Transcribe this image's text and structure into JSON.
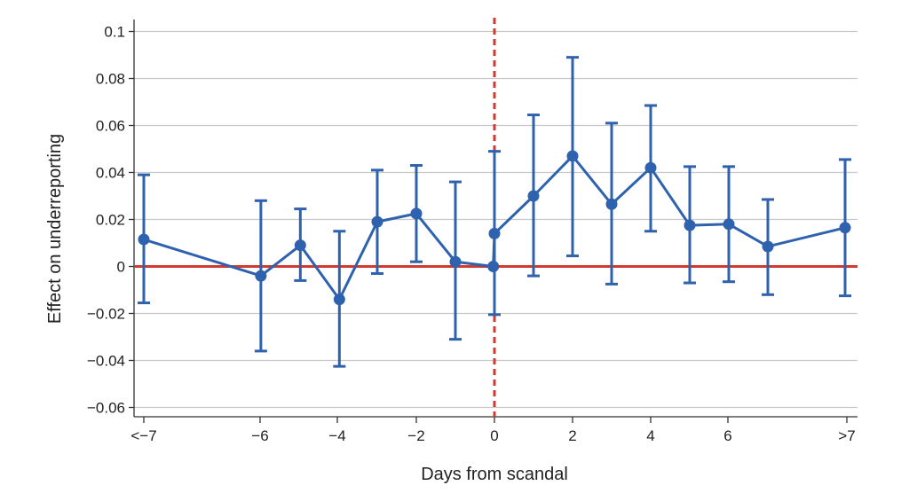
{
  "chart_data": {
    "type": "line",
    "xlabel": "Days from scandal",
    "ylabel": "Effect on underreporting",
    "xlim": [
      -7,
      7
    ],
    "ylim": [
      -0.06,
      0.1
    ],
    "x_ticks": [
      {
        "x": -7,
        "label": "<−7"
      },
      {
        "x": -6,
        "label": "−6"
      },
      {
        "x": -4,
        "label": "−4"
      },
      {
        "x": -2,
        "label": "−2"
      },
      {
        "x": 0,
        "label": "0"
      },
      {
        "x": 2,
        "label": "2"
      },
      {
        "x": 4,
        "label": "4"
      },
      {
        "x": 6,
        "label": "6"
      },
      {
        "x": 7,
        "label": ">7"
      }
    ],
    "y_ticks": [
      {
        "y": 0.1,
        "label": "0.1"
      },
      {
        "y": 0.08,
        "label": "0.08"
      },
      {
        "y": 0.06,
        "label": "0.06"
      },
      {
        "y": 0.04,
        "label": "0.04"
      },
      {
        "y": 0.02,
        "label": "0.02"
      },
      {
        "y": 0,
        "label": "0"
      },
      {
        "y": -0.02,
        "label": "−0.02"
      },
      {
        "y": -0.04,
        "label": "−0.04"
      },
      {
        "y": -0.06,
        "label": "−0.06"
      }
    ],
    "grid": "horizontal",
    "reference_lines": [
      {
        "orientation": "horizontal",
        "value": 0,
        "style": "solid",
        "color": "#d03a2f"
      },
      {
        "orientation": "vertical",
        "value": 0,
        "style": "dashed",
        "color": "#d03a2f"
      }
    ],
    "series": [
      {
        "color": "#2e62ae",
        "points": [
          {
            "x": -7,
            "y": 0.0115,
            "lower": -0.0155,
            "upper": 0.039
          },
          {
            "x": -5.98,
            "y": -0.004,
            "lower": -0.036,
            "upper": 0.028
          },
          {
            "x": -4.97,
            "y": 0.009,
            "lower": -0.006,
            "upper": 0.0245
          },
          {
            "x": -3.97,
            "y": -0.014,
            "lower": -0.0425,
            "upper": 0.015
          },
          {
            "x": -3.0,
            "y": 0.019,
            "lower": -0.003,
            "upper": 0.041
          },
          {
            "x": -2.0,
            "y": 0.0225,
            "lower": 0.002,
            "upper": 0.043
          },
          {
            "x": -1.0,
            "y": 0.002,
            "lower": -0.031,
            "upper": 0.036
          },
          {
            "x": -0.03,
            "y": 0.0,
            "lower": null,
            "upper": null
          },
          {
            "x": 0.0,
            "y": 0.014,
            "lower": -0.0205,
            "upper": 0.049
          },
          {
            "x": 1.0,
            "y": 0.03,
            "lower": -0.004,
            "upper": 0.0645
          },
          {
            "x": 2.0,
            "y": 0.047,
            "lower": 0.0045,
            "upper": 0.089
          },
          {
            "x": 3.0,
            "y": 0.0265,
            "lower": -0.0075,
            "upper": 0.061
          },
          {
            "x": 4.0,
            "y": 0.042,
            "lower": 0.015,
            "upper": 0.0685
          },
          {
            "x": 5.0,
            "y": 0.0175,
            "lower": -0.007,
            "upper": 0.0425
          },
          {
            "x": 6.0,
            "y": 0.018,
            "lower": -0.0065,
            "upper": 0.0425
          },
          {
            "x": 7.0,
            "y": 0.0085,
            "lower": -0.012,
            "upper": 0.0285
          },
          {
            "x": 9.0,
            "y": 0.0165,
            "lower": -0.0125,
            "upper": 0.0455
          }
        ]
      }
    ]
  }
}
